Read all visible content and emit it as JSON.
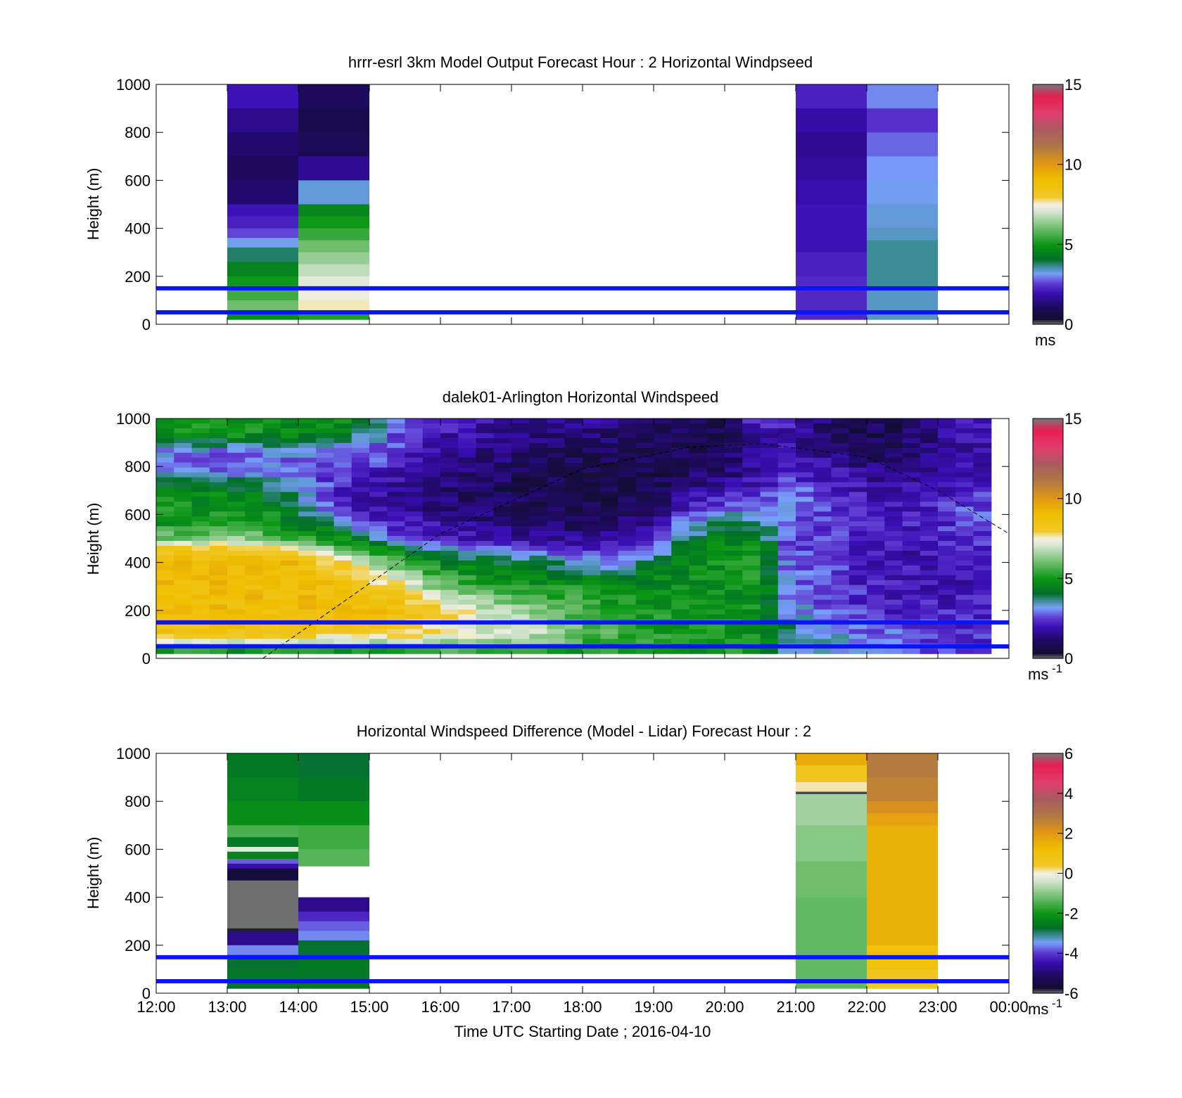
{
  "chart_data": [
    {
      "type": "heatmap",
      "title": "hrrr-esrl 3km Model Output   Forecast Hour : 2 Horizontal Windpseed",
      "ylabel": "Height (m)",
      "yticks": [
        "0",
        "200",
        "400",
        "600",
        "800",
        "1000"
      ],
      "ylim": [
        0,
        1000
      ],
      "xlim_hours": [
        12,
        24
      ],
      "colorbar": {
        "ticks": [
          "0",
          "5",
          "10",
          "15"
        ],
        "range": [
          0,
          15
        ],
        "unit": "ms",
        "unit_sup": ""
      },
      "reference_lines_height_m": [
        50,
        150
      ],
      "columns": [
        {
          "start": 13,
          "end": 14,
          "bottom": 20,
          "cells": [
            [
              1000,
              900,
              2.0
            ],
            [
              900,
              800,
              1.5
            ],
            [
              800,
              700,
              1.2
            ],
            [
              700,
              600,
              1.0
            ],
            [
              600,
              500,
              1.2
            ],
            [
              500,
              450,
              2.0
            ],
            [
              450,
              400,
              2.2
            ],
            [
              400,
              360,
              2.6
            ],
            [
              360,
              320,
              3.2
            ],
            [
              320,
              260,
              3.8
            ],
            [
              260,
              200,
              4.5
            ],
            [
              200,
              160,
              5.0
            ],
            [
              160,
              100,
              5.5
            ],
            [
              100,
              50,
              6.0
            ],
            [
              50,
              20,
              4.8
            ]
          ]
        },
        {
          "start": 14,
          "end": 15,
          "bottom": 20,
          "cells": [
            [
              1000,
              900,
              1.0
            ],
            [
              900,
              800,
              0.8
            ],
            [
              800,
              700,
              0.9
            ],
            [
              700,
              600,
              1.6
            ],
            [
              600,
              500,
              3.3
            ],
            [
              500,
              450,
              4.6
            ],
            [
              450,
              400,
              5.0
            ],
            [
              400,
              350,
              5.4
            ],
            [
              350,
              300,
              6.0
            ],
            [
              300,
              250,
              6.4
            ],
            [
              250,
              200,
              6.8
            ],
            [
              200,
              150,
              7.2
            ],
            [
              150,
              100,
              7.4
            ],
            [
              100,
              50,
              7.6
            ],
            [
              50,
              20,
              5.2
            ]
          ]
        },
        {
          "start": 21,
          "end": 22,
          "bottom": 20,
          "cells": [
            [
              1000,
              900,
              2.2
            ],
            [
              900,
              800,
              1.8
            ],
            [
              800,
              700,
              1.6
            ],
            [
              700,
              600,
              1.7
            ],
            [
              600,
              500,
              1.9
            ],
            [
              500,
              400,
              2.0
            ],
            [
              400,
              300,
              2.0
            ],
            [
              300,
              200,
              2.2
            ],
            [
              200,
              100,
              2.3
            ],
            [
              100,
              20,
              2.3
            ]
          ]
        },
        {
          "start": 22,
          "end": 23,
          "bottom": 20,
          "cells": [
            [
              1000,
              900,
              3.0
            ],
            [
              900,
              800,
              2.4
            ],
            [
              800,
              700,
              2.8
            ],
            [
              700,
              600,
              3.1
            ],
            [
              600,
              500,
              3.2
            ],
            [
              500,
              400,
              3.3
            ],
            [
              400,
              350,
              3.4
            ],
            [
              350,
              150,
              3.6
            ],
            [
              150,
              20,
              3.4
            ]
          ]
        }
      ]
    },
    {
      "type": "heatmap",
      "title": "dalek01-Arlington  Horizontal Windspeed",
      "ylabel": "Height (m)",
      "yticks": [
        "0",
        "200",
        "400",
        "600",
        "800",
        "1000"
      ],
      "ylim": [
        0,
        1000
      ],
      "xlim_hours": [
        12,
        24
      ],
      "colorbar": {
        "ticks": [
          "0",
          "5",
          "10",
          "15"
        ],
        "range": [
          0,
          15
        ],
        "unit": "ms",
        "unit_sup": "-1"
      },
      "reference_lines_height_m": [
        50,
        150
      ],
      "data_extent_hours": [
        12,
        23.85
      ],
      "profile_hours": [
        12.0,
        12.5,
        13.0,
        13.5,
        14.0,
        14.5,
        15.0,
        15.5,
        16.0,
        16.5,
        17.0,
        17.5,
        18.0,
        18.5,
        19.0,
        19.5,
        20.0,
        20.5,
        20.9,
        21.4,
        21.9,
        22.4,
        22.9,
        23.4
      ],
      "profile_heights": [
        30,
        100,
        200,
        300,
        400,
        460,
        500,
        560,
        620,
        700,
        780,
        860,
        940,
        1000
      ],
      "profile_speeds": [
        [
          5.0,
          8.5,
          9.0,
          9.0,
          9.0,
          8.0,
          6.0,
          5.0,
          5.5,
          5.0,
          3.0,
          3.0,
          5.0,
          4.5
        ],
        [
          5.0,
          8.5,
          9.0,
          9.0,
          9.0,
          8.0,
          6.0,
          5.0,
          5.0,
          4.5,
          3.0,
          3.0,
          5.0,
          5.0
        ],
        [
          5.0,
          8.5,
          9.0,
          9.0,
          9.0,
          8.0,
          6.5,
          5.0,
          5.0,
          4.5,
          3.0,
          2.8,
          5.0,
          5.0
        ],
        [
          5.0,
          8.5,
          9.0,
          9.0,
          9.0,
          8.0,
          6.0,
          5.0,
          5.0,
          4.0,
          3.0,
          2.8,
          5.0,
          5.0
        ],
        [
          5.0,
          8.2,
          9.0,
          9.0,
          9.0,
          7.5,
          5.5,
          4.5,
          4.0,
          3.5,
          3.0,
          3.0,
          4.5,
          5.0
        ],
        [
          5.0,
          8.0,
          9.0,
          8.8,
          8.0,
          6.0,
          5.0,
          4.0,
          2.5,
          2.2,
          2.5,
          3.0,
          4.5,
          5.0
        ],
        [
          5.0,
          8.0,
          9.0,
          8.5,
          6.8,
          5.0,
          3.5,
          2.5,
          2.0,
          1.8,
          2.2,
          3.0,
          3.5,
          4.0
        ],
        [
          5.5,
          7.8,
          8.8,
          7.5,
          5.5,
          4.0,
          2.5,
          2.0,
          1.8,
          1.6,
          1.8,
          2.2,
          2.6,
          3.0
        ],
        [
          5.5,
          7.5,
          8.0,
          6.0,
          4.5,
          3.0,
          2.2,
          1.8,
          1.5,
          1.3,
          1.5,
          1.8,
          2.0,
          2.2
        ],
        [
          5.5,
          7.2,
          7.2,
          5.5,
          4.5,
          3.0,
          2.0,
          1.5,
          1.2,
          1.0,
          1.2,
          1.5,
          1.8,
          2.0
        ],
        [
          5.5,
          7.0,
          6.5,
          5.0,
          4.0,
          2.6,
          1.8,
          1.4,
          1.0,
          0.8,
          1.0,
          1.3,
          1.6,
          1.8
        ],
        [
          5.2,
          6.8,
          6.0,
          5.0,
          3.8,
          2.4,
          1.6,
          1.2,
          0.9,
          0.7,
          0.9,
          1.1,
          1.5,
          1.7
        ],
        [
          5.0,
          6.0,
          5.5,
          5.0,
          3.5,
          2.2,
          1.5,
          1.1,
          0.8,
          0.7,
          0.8,
          1.0,
          1.4,
          1.6
        ],
        [
          5.0,
          5.5,
          5.0,
          4.8,
          3.0,
          2.5,
          1.8,
          1.2,
          0.9,
          0.8,
          0.8,
          0.9,
          1.2,
          1.5
        ],
        [
          5.0,
          5.2,
          5.0,
          4.8,
          4.0,
          3.0,
          2.5,
          1.8,
          1.0,
          0.8,
          0.7,
          0.8,
          1.0,
          1.2
        ],
        [
          5.0,
          5.0,
          5.0,
          4.8,
          4.8,
          4.5,
          3.8,
          3.2,
          2.4,
          1.5,
          1.0,
          0.8,
          0.8,
          1.0
        ],
        [
          5.0,
          5.0,
          4.8,
          4.8,
          4.8,
          4.8,
          4.5,
          4.0,
          3.0,
          1.8,
          1.2,
          0.9,
          0.9,
          1.0
        ],
        [
          5.0,
          5.0,
          5.0,
          5.0,
          5.0,
          4.8,
          4.3,
          3.8,
          2.8,
          2.2,
          1.8,
          1.8,
          2.0,
          3.0
        ],
        [
          3.5,
          3.8,
          3.2,
          3.0,
          2.8,
          2.6,
          2.6,
          2.8,
          3.0,
          2.8,
          2.4,
          2.0,
          1.8,
          2.2
        ],
        [
          3.5,
          3.2,
          2.8,
          2.6,
          2.6,
          2.4,
          2.4,
          2.6,
          2.6,
          2.4,
          2.0,
          1.6,
          1.2,
          1.2
        ],
        [
          3.2,
          3.0,
          2.4,
          2.2,
          2.2,
          2.2,
          2.2,
          2.2,
          2.2,
          2.0,
          1.6,
          1.2,
          0.8,
          0.8
        ],
        [
          2.8,
          2.8,
          2.2,
          2.0,
          2.0,
          2.0,
          2.0,
          2.0,
          2.0,
          1.8,
          1.4,
          1.0,
          0.9,
          1.0
        ],
        [
          2.5,
          2.6,
          2.2,
          2.0,
          2.0,
          2.0,
          2.2,
          2.2,
          2.2,
          2.0,
          1.6,
          1.4,
          1.4,
          1.6
        ],
        [
          2.2,
          2.4,
          2.2,
          2.0,
          2.0,
          2.2,
          2.4,
          2.6,
          2.6,
          2.4,
          2.0,
          1.8,
          1.8,
          2.0
        ]
      ],
      "dashed_curve": {
        "x_hours": [
          13.5,
          16.0,
          18.0,
          19.5,
          20.5,
          22.0,
          23.0,
          24.0
        ],
        "y_m": [
          0,
          520,
          790,
          880,
          895,
          840,
          700,
          520
        ]
      }
    },
    {
      "type": "heatmap",
      "title": "Horizontal Windspeed Difference (Model - Lidar) Forecast Hour : 2",
      "xlabel": "Time UTC  Starting Date ; 2016-04-10",
      "ylabel": "Height (m)",
      "xticks": [
        "12:00",
        "13:00",
        "14:00",
        "15:00",
        "16:00",
        "17:00",
        "18:00",
        "19:00",
        "20:00",
        "21:00",
        "22:00",
        "23:00",
        "00:00"
      ],
      "yticks": [
        "0",
        "200",
        "400",
        "600",
        "800",
        "1000"
      ],
      "ylim": [
        0,
        1000
      ],
      "xlim_hours": [
        12,
        24
      ],
      "colorbar": {
        "ticks": [
          "-6",
          "-4",
          "-2",
          "0",
          "2",
          "4",
          "6"
        ],
        "range": [
          -6,
          6
        ],
        "unit": "ms",
        "unit_sup": "-1"
      },
      "reference_lines_height_m": [
        50,
        150
      ],
      "columns": [
        {
          "start": 13,
          "end": 14,
          "bottom": 20,
          "cells": [
            [
              1000,
              900,
              -2.6
            ],
            [
              900,
              800,
              -2.4
            ],
            [
              800,
              700,
              -2.2
            ],
            [
              700,
              650,
              -1.5
            ],
            [
              650,
              610,
              -2.6
            ],
            [
              610,
              590,
              -0.2
            ],
            [
              590,
              560,
              -2.4
            ],
            [
              560,
              540,
              -3.8
            ],
            [
              540,
              520,
              -4.5
            ],
            [
              520,
              470,
              -5.6
            ],
            [
              470,
              270,
              -6.2
            ],
            [
              270,
              255,
              -5.8
            ],
            [
              255,
              200,
              -4.8
            ],
            [
              200,
              160,
              -3.6
            ],
            [
              160,
              100,
              -2.8
            ],
            [
              100,
              50,
              -2.6
            ],
            [
              50,
              20,
              -2.8
            ]
          ]
        },
        {
          "start": 14,
          "end": 15,
          "bottom": 530,
          "cells": [
            [
              1000,
              900,
              -2.8
            ],
            [
              900,
              800,
              -2.6
            ],
            [
              800,
              700,
              -2.2
            ],
            [
              700,
              600,
              -1.6
            ],
            [
              600,
              530,
              -1.4
            ]
          ]
        },
        {
          "start": 14,
          "end": 15,
          "bottom": 20,
          "cells": [
            [
              400,
              340,
              -4.8
            ],
            [
              340,
              300,
              -4.2
            ],
            [
              300,
              260,
              -3.8
            ],
            [
              260,
              220,
              -3.6
            ],
            [
              220,
              160,
              -2.8
            ],
            [
              160,
              100,
              -2.6
            ],
            [
              100,
              20,
              -2.6
            ]
          ]
        },
        {
          "start": 21,
          "end": 22,
          "bottom": 20,
          "cells": [
            [
              1000,
              950,
              1.6
            ],
            [
              950,
              880,
              0.6
            ],
            [
              880,
              840,
              0.1
            ],
            [
              840,
              830,
              -5.9
            ],
            [
              830,
              700,
              -0.8
            ],
            [
              700,
              550,
              -1.0
            ],
            [
              550,
              400,
              -1.2
            ],
            [
              400,
              200,
              -1.3
            ],
            [
              200,
              20,
              -1.3
            ]
          ]
        },
        {
          "start": 22,
          "end": 23,
          "bottom": 20,
          "cells": [
            [
              1000,
              900,
              2.8
            ],
            [
              900,
              800,
              2.6
            ],
            [
              800,
              750,
              2.2
            ],
            [
              750,
              700,
              1.8
            ],
            [
              700,
              200,
              1.5
            ],
            [
              200,
              100,
              1.0
            ],
            [
              100,
              50,
              0.6
            ],
            [
              50,
              20,
              0.4
            ]
          ]
        }
      ]
    }
  ]
}
